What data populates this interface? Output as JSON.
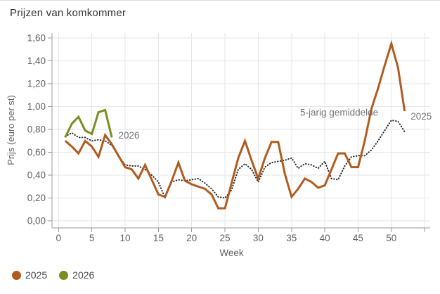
{
  "title": "Prijzen van komkommer",
  "chart_data": {
    "type": "line",
    "title": "Prijzen van komkommer",
    "xlabel": "Week",
    "ylabel": "Prijs (euro per st)",
    "xlim": [
      0,
      55.8
    ],
    "ylim": [
      0,
      1.64
    ],
    "grid": true,
    "legend_position": "bottom-left",
    "x_ticks": [
      0,
      5,
      10,
      15,
      20,
      25,
      30,
      35,
      40,
      45,
      50
    ],
    "x_tick_labels": [
      "0",
      "5",
      "10",
      "15",
      "20",
      "25",
      "30",
      "35",
      "40",
      "45",
      "50"
    ],
    "y_tick_values": [
      0,
      0.2,
      0.4,
      0.6,
      0.8,
      1.0,
      1.2,
      1.4,
      1.6
    ],
    "y_tick_labels": [
      "0,00",
      "0,20",
      "0,40",
      "0,60",
      "0,80",
      "1,00",
      "1,20",
      "1,40",
      "1,60"
    ],
    "weeks": [
      1,
      2,
      3,
      4,
      5,
      6,
      7,
      8,
      9,
      10,
      11,
      12,
      13,
      14,
      15,
      16,
      17,
      18,
      19,
      20,
      21,
      22,
      23,
      24,
      25,
      26,
      27,
      28,
      29,
      30,
      31,
      32,
      33,
      34,
      35,
      36,
      37,
      38,
      39,
      40,
      41,
      42,
      43,
      44,
      45,
      46,
      47,
      48,
      49,
      50,
      51,
      52
    ],
    "series": [
      {
        "name": "5-jarig gemiddelde",
        "color": "#262626",
        "style": "dotted",
        "values": [
          0.74,
          0.77,
          0.73,
          0.73,
          0.7,
          0.71,
          0.7,
          0.66,
          0.57,
          0.49,
          0.48,
          0.48,
          0.45,
          0.4,
          0.34,
          0.2,
          0.34,
          0.36,
          0.35,
          0.36,
          0.37,
          0.33,
          0.28,
          0.21,
          0.2,
          0.27,
          0.45,
          0.5,
          0.45,
          0.34,
          0.47,
          0.51,
          0.52,
          0.53,
          0.55,
          0.46,
          0.5,
          0.49,
          0.46,
          0.52,
          0.37,
          0.36,
          0.48,
          0.56,
          0.57,
          0.57,
          0.62,
          0.7,
          0.79,
          0.88,
          0.87,
          0.78
        ]
      },
      {
        "name": "2025",
        "color": "#b05c20",
        "style": "solid",
        "values": [
          0.7,
          0.65,
          0.59,
          0.7,
          0.65,
          0.56,
          0.75,
          0.67,
          0.57,
          0.47,
          0.45,
          0.37,
          0.49,
          0.36,
          0.23,
          0.21,
          0.35,
          0.51,
          0.35,
          0.32,
          0.3,
          0.28,
          0.23,
          0.11,
          0.11,
          0.33,
          0.55,
          0.7,
          0.53,
          0.37,
          0.55,
          0.69,
          0.69,
          0.41,
          0.21,
          0.28,
          0.37,
          0.34,
          0.29,
          0.31,
          0.45,
          0.59,
          0.59,
          0.47,
          0.47,
          0.7,
          0.98,
          1.16,
          1.36,
          1.55,
          1.34,
          0.96
        ]
      },
      {
        "name": "2026",
        "color": "#7b8c21",
        "style": "solid",
        "values": [
          0.73,
          0.85,
          0.91,
          0.79,
          0.76,
          0.95,
          0.97,
          0.73
        ]
      }
    ],
    "annotations": [
      {
        "text": "2026",
        "week": 9.0,
        "value": 0.72
      },
      {
        "text": "5-jarig gemiddelde",
        "week": 36.3,
        "value": 0.92
      },
      {
        "text": "2025",
        "week": 52.9,
        "value": 0.885
      }
    ]
  },
  "legend": [
    {
      "label": "2025",
      "color": "#b05c20"
    },
    {
      "label": "2026",
      "color": "#7b8c21"
    }
  ],
  "colors": {
    "grid": "#e6e6e6",
    "axis": "#9a9a9a",
    "tick_text": "#616161",
    "annotation_text": "#757575"
  }
}
